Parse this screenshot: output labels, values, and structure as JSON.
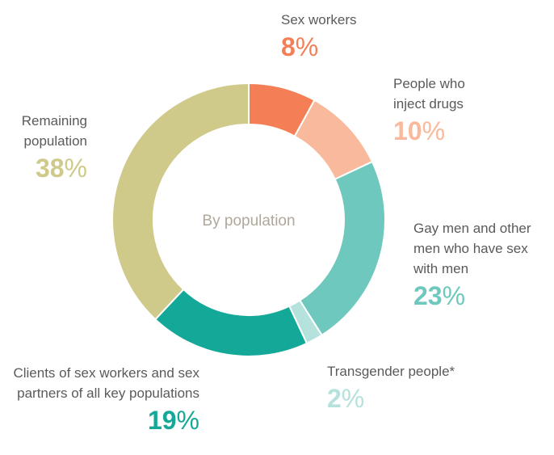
{
  "chart_data": {
    "type": "pie",
    "center_label": "By population",
    "categories": [
      "Sex workers",
      "People who inject drugs",
      "Gay men and other men who have sex with men",
      "Transgender people*",
      "Clients of sex workers and sex partners of all key populations",
      "Remaining population"
    ],
    "values": [
      8,
      10,
      23,
      2,
      19,
      38
    ],
    "value_labels": [
      "8%",
      "10%",
      "23%",
      "2%",
      "19%",
      "38%"
    ],
    "colors": [
      "#f47f57",
      "#f9b99c",
      "#6ec8bd",
      "#b5e2dc",
      "#13a898",
      "#cfc98a"
    ]
  }
}
